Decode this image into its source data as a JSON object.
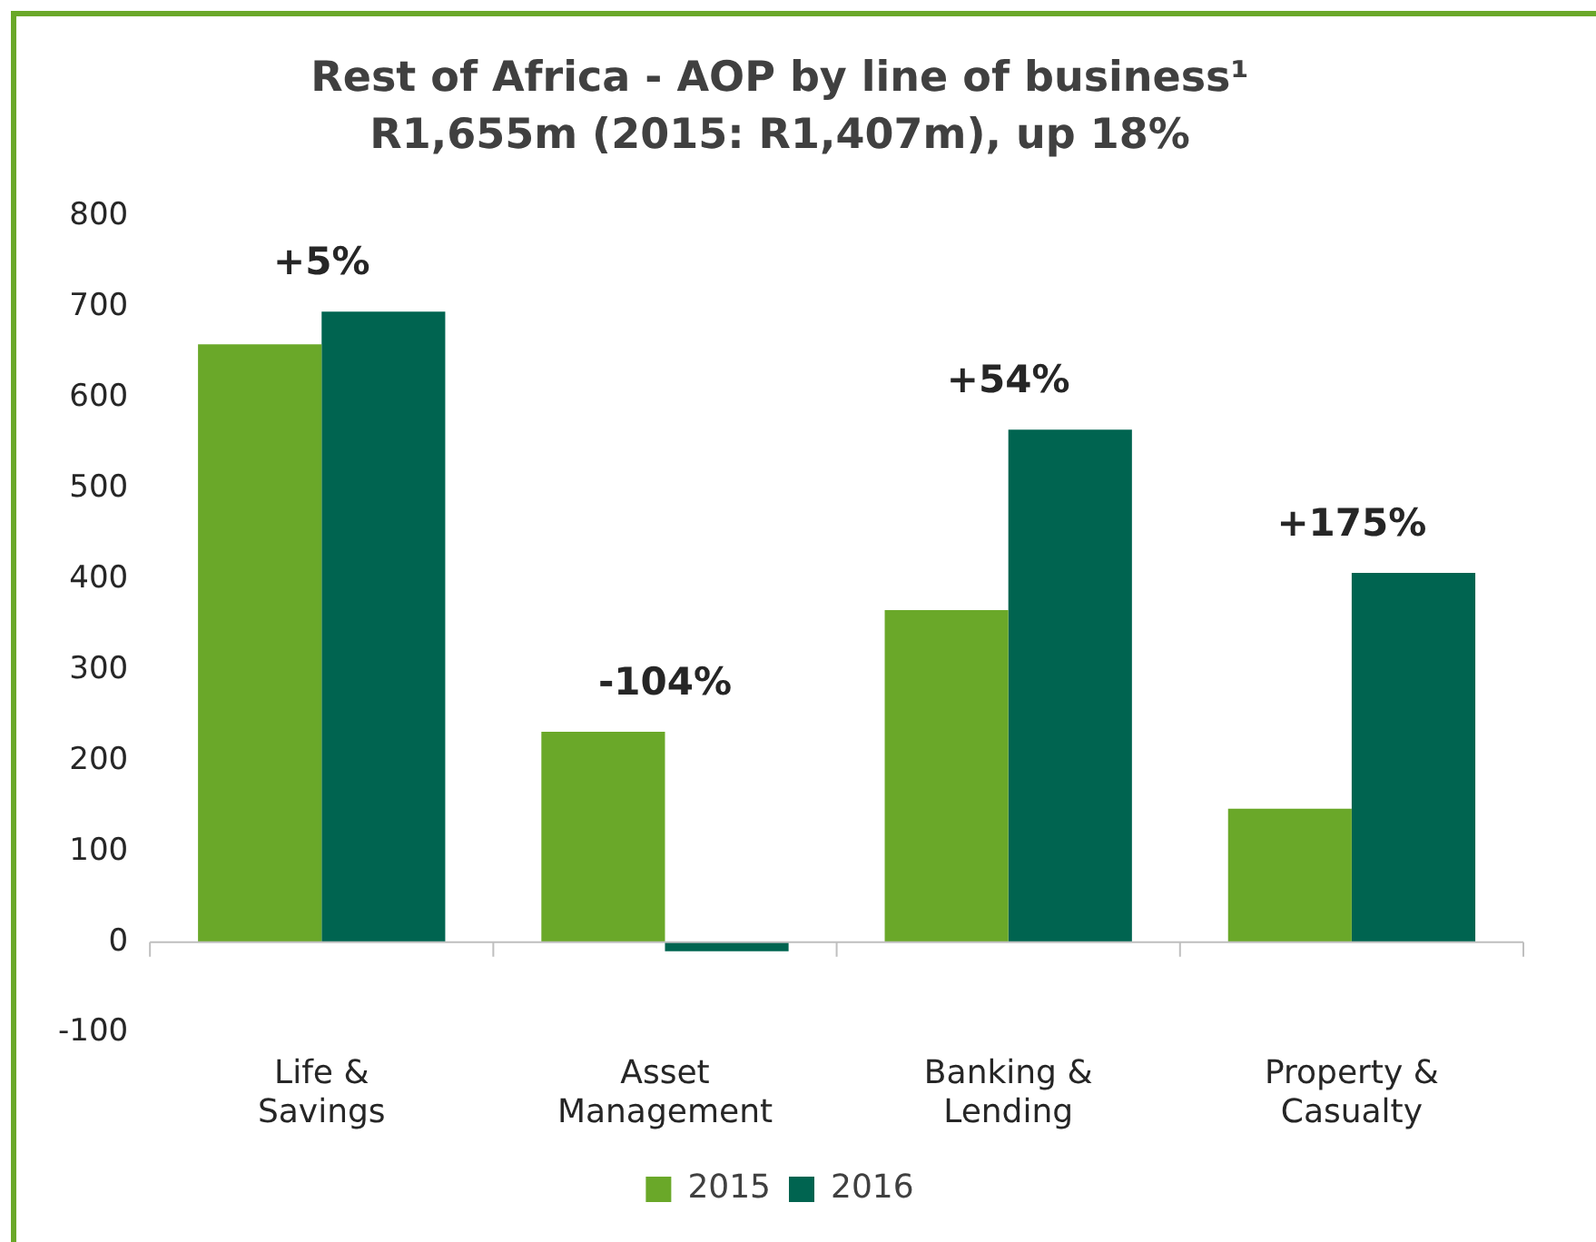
{
  "chart_data": {
    "type": "bar",
    "title": "Rest of Africa - AOP by line of business¹",
    "subtitle": "R1,655m (2015: R1,407m), up 18%",
    "categories": [
      "Life & Savings",
      "Asset Management",
      "Banking & Lending",
      "Property & Casualty"
    ],
    "series": [
      {
        "name": "2015",
        "color": "#6aa829",
        "values": [
          659,
          232,
          366,
          147
        ]
      },
      {
        "name": "2016",
        "color": "#006450",
        "values": [
          695,
          -10,
          565,
          407
        ]
      }
    ],
    "ylim": [
      -100,
      800
    ],
    "yticks": [
      -100,
      0,
      100,
      200,
      300,
      400,
      500,
      600,
      700,
      800
    ],
    "legend": "bottom",
    "annotations": [
      "+5%",
      "-104%",
      "+54%",
      "+175%"
    ]
  }
}
